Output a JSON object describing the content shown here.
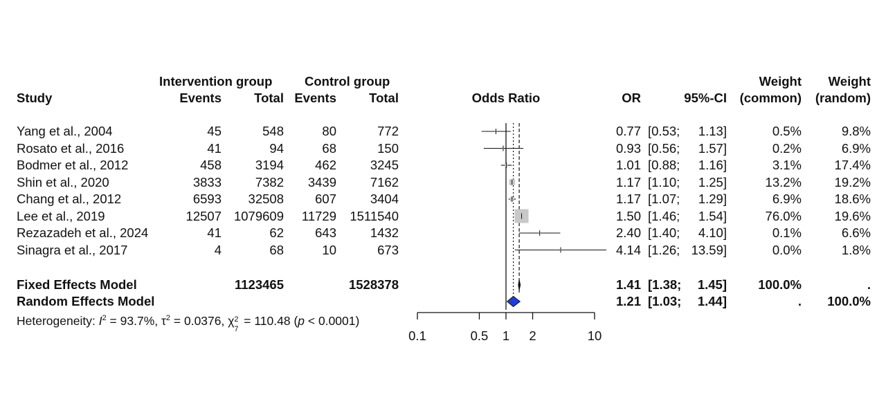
{
  "headers": {
    "study": "Study",
    "intervention_group": "Intervention group",
    "control_group": "Control group",
    "events": "Events",
    "total": "Total",
    "odds_ratio": "Odds Ratio",
    "or": "OR",
    "ci": "95%-CI",
    "weight": "Weight",
    "common": "(common)",
    "random": "(random)"
  },
  "studies": [
    {
      "study": "Yang et al., 2004",
      "ev_i": "45",
      "tot_i": "548",
      "ev_c": "80",
      "tot_c": "772",
      "or": "0.77",
      "ci_l": "[0.53;",
      "ci_u": "1.13]",
      "w_common": "0.5%",
      "w_random": "9.8%"
    },
    {
      "study": "Rosato et al., 2016",
      "ev_i": "41",
      "tot_i": "94",
      "ev_c": "68",
      "tot_c": "150",
      "or": "0.93",
      "ci_l": "[0.56;",
      "ci_u": "1.57]",
      "w_common": "0.2%",
      "w_random": "6.9%"
    },
    {
      "study": "Bodmer et al., 2012",
      "ev_i": "458",
      "tot_i": "3194",
      "ev_c": "462",
      "tot_c": "3245",
      "or": "1.01",
      "ci_l": "[0.88;",
      "ci_u": "1.16]",
      "w_common": "3.1%",
      "w_random": "17.4%"
    },
    {
      "study": "Shin et al., 2020",
      "ev_i": "3833",
      "tot_i": "7382",
      "ev_c": "3439",
      "tot_c": "7162",
      "or": "1.17",
      "ci_l": "[1.10;",
      "ci_u": "1.25]",
      "w_common": "13.2%",
      "w_random": "19.2%"
    },
    {
      "study": "Chang et al., 2012",
      "ev_i": "6593",
      "tot_i": "32508",
      "ev_c": "607",
      "tot_c": "3404",
      "or": "1.17",
      "ci_l": "[1.07;",
      "ci_u": "1.29]",
      "w_common": "6.9%",
      "w_random": "18.6%"
    },
    {
      "study": "Lee et al., 2019",
      "ev_i": "12507",
      "tot_i": "1079609",
      "ev_c": "11729",
      "tot_c": "1511540",
      "or": "1.50",
      "ci_l": "[1.46;",
      "ci_u": "1.54]",
      "w_common": "76.0%",
      "w_random": "19.6%"
    },
    {
      "study": "Rezazadeh et al., 2024",
      "ev_i": "41",
      "tot_i": "62",
      "ev_c": "643",
      "tot_c": "1432",
      "or": "2.40",
      "ci_l": "[1.40;",
      "ci_u": "4.10]",
      "w_common": "0.1%",
      "w_random": "6.6%"
    },
    {
      "study": "Sinagra et al., 2017",
      "ev_i": "4",
      "tot_i": "68",
      "ev_c": "10",
      "tot_c": "673",
      "or": "4.14",
      "ci_l": "[1.26;",
      "ci_u": "13.59]",
      "w_common": "0.0%",
      "w_random": "1.8%"
    }
  ],
  "models": [
    {
      "name": "Fixed Effects Model",
      "tot_i": "1123465",
      "tot_c": "1528378",
      "or": "1.41",
      "ci_l": "[1.38;",
      "ci_u": "1.45]",
      "w_common": "100.0%",
      "w_random": "."
    },
    {
      "name": "Random Effects Model",
      "tot_i": "",
      "tot_c": "",
      "or": "1.21",
      "ci_l": "[1.03;",
      "ci_u": "1.44]",
      "w_common": ".",
      "w_random": "100.0%"
    }
  ],
  "heterogeneity": {
    "prefix": "Heterogeneity: ",
    "i2_sym": "I",
    "i2_sup": "2",
    "i2_val": " = 93.7%, ",
    "tau_sym": "τ",
    "tau_sup": "2",
    "tau_val": " = 0.0376, ",
    "chi_sym": "χ",
    "chi_sup": "2",
    "chi_sub": "7",
    "chi_val": " = 110.48 (",
    "p_sym": "p",
    "p_val": " < 0.0001)"
  },
  "chart_data": {
    "type": "forest",
    "scale": "log",
    "xlim": [
      0.1,
      10
    ],
    "xticks": [
      0.1,
      0.5,
      1,
      2,
      10
    ],
    "xtick_labels": [
      "0.1",
      "0.5",
      "1",
      "2",
      "10"
    ],
    "null_line": 1,
    "colors": {
      "fixed_diamond": "#111111",
      "random_diamond": "#1f3fd8",
      "box": "#c8c8c8",
      "line": "#111111"
    },
    "studies": [
      {
        "or": 0.77,
        "lo": 0.53,
        "hi": 1.13,
        "w": 0.5
      },
      {
        "or": 0.93,
        "lo": 0.56,
        "hi": 1.57,
        "w": 0.2
      },
      {
        "or": 1.01,
        "lo": 0.88,
        "hi": 1.16,
        "w": 3.1
      },
      {
        "or": 1.17,
        "lo": 1.1,
        "hi": 1.25,
        "w": 13.2
      },
      {
        "or": 1.17,
        "lo": 1.07,
        "hi": 1.29,
        "w": 6.9
      },
      {
        "or": 1.5,
        "lo": 1.46,
        "hi": 1.54,
        "w": 76.0
      },
      {
        "or": 2.4,
        "lo": 1.4,
        "hi": 4.1,
        "w": 0.1
      },
      {
        "or": 4.14,
        "lo": 1.26,
        "hi": 13.59,
        "w": 0.0
      }
    ],
    "fixed": {
      "or": 1.41,
      "lo": 1.38,
      "hi": 1.45
    },
    "random": {
      "or": 1.21,
      "lo": 1.03,
      "hi": 1.44
    }
  }
}
